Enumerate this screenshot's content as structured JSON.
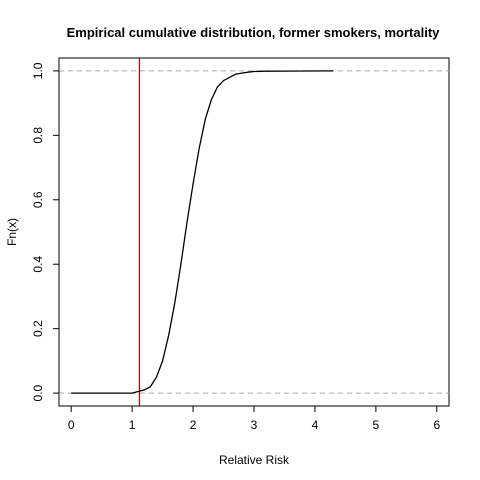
{
  "chart_data": {
    "type": "line",
    "title": "Empirical cumulative distribution, former smokers, mortality",
    "xlabel": "Relative Risk",
    "ylabel": "Fn(x)",
    "xlim": [
      -0.2,
      6.2
    ],
    "ylim": [
      -0.04,
      1.04
    ],
    "x_ticks": [
      0,
      1,
      2,
      3,
      4,
      5,
      6
    ],
    "y_ticks": [
      0.0,
      0.2,
      0.4,
      0.6,
      0.8,
      1.0
    ],
    "y_tick_labels": [
      "0.0",
      "0.2",
      "0.4",
      "0.6",
      "0.8",
      "1.0"
    ],
    "reference_lines": {
      "horizontal_dashed": [
        0.0,
        1.0
      ],
      "vertical": {
        "x": 1.12,
        "color": "#cc0000"
      }
    },
    "series": [
      {
        "x": [
          0.0,
          1.0,
          1.2,
          1.3,
          1.4,
          1.5,
          1.6,
          1.7,
          1.8,
          1.9,
          2.0,
          2.1,
          2.2,
          2.3,
          2.4,
          2.5,
          2.6,
          2.7,
          2.8,
          2.9,
          3.0,
          3.2,
          3.5,
          4.3
        ],
        "y": [
          0.0,
          0.0,
          0.01,
          0.02,
          0.05,
          0.1,
          0.18,
          0.28,
          0.4,
          0.53,
          0.65,
          0.76,
          0.85,
          0.91,
          0.95,
          0.97,
          0.98,
          0.99,
          0.993,
          0.996,
          0.998,
          0.999,
          0.9995,
          1.0
        ],
        "color": "#000000"
      }
    ]
  }
}
